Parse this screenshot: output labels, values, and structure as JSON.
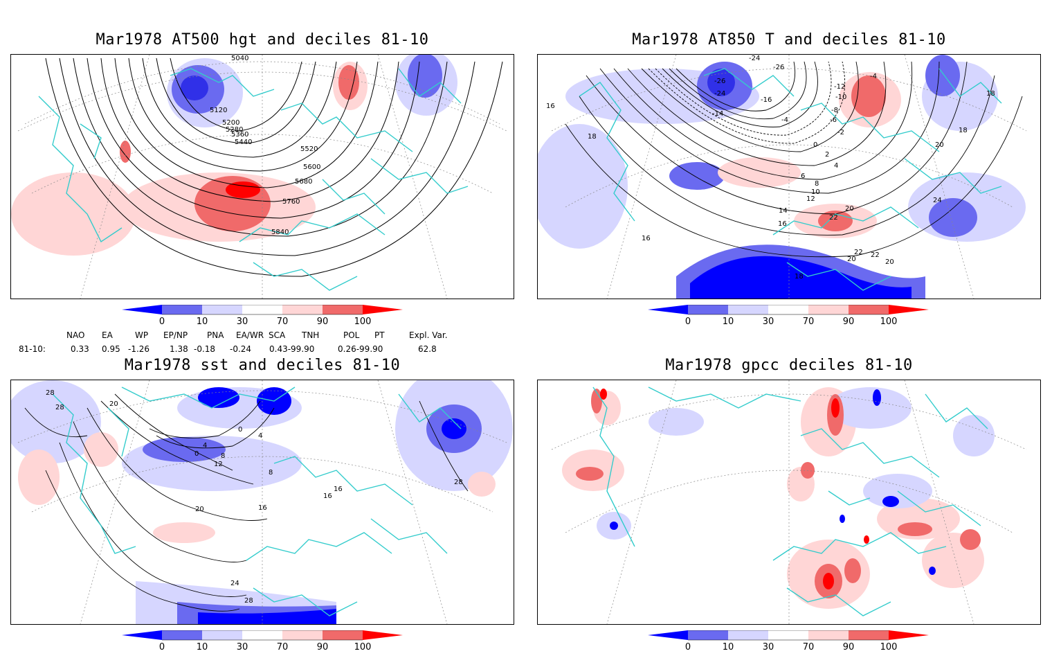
{
  "panels": [
    {
      "title": "Mar1978 AT500 hgt and deciles 81-10",
      "contour_labels": [
        "5040",
        "5120",
        "5200",
        "5280",
        "5360",
        "5440",
        "5520",
        "5600",
        "5680",
        "5760",
        "5840"
      ]
    },
    {
      "title": "Mar1978 AT850 T and deciles 81-10",
      "contour_labels": [
        "-24",
        "-26",
        "-26",
        "-24",
        "-14",
        "-16",
        "-12",
        "-10",
        "-8",
        "-6",
        "-4",
        "-4",
        "-2",
        "0",
        "2",
        "4",
        "6",
        "8",
        "10",
        "12",
        "14",
        "16",
        "18",
        "18",
        "16",
        "20",
        "22",
        "22",
        "22",
        "20",
        "24",
        "20",
        "16",
        "18",
        "20",
        "18"
      ]
    },
    {
      "title": "Mar1978 sst and deciles 81-10",
      "contour_labels": [
        "28",
        "28",
        "20",
        "0",
        "4",
        "8",
        "12",
        "4",
        "0",
        "8",
        "16",
        "16",
        "16",
        "20",
        "24",
        "28",
        "28"
      ]
    },
    {
      "title": "Mar1978 gpcc deciles 81-10",
      "contour_labels": []
    }
  ],
  "colorbar": {
    "ticks": [
      "0",
      "10",
      "30",
      "70",
      "90",
      "100"
    ],
    "colors": {
      "dark_blue": "#0000ff",
      "mid_blue": "#6a6af0",
      "light_blue": "#d6d6ff",
      "white": "#ffffff",
      "light_red": "#ffd6d6",
      "mid_red": "#f06a6a",
      "dark_red": "#ff0000"
    }
  },
  "indices": {
    "headers": [
      "NAO",
      "EA",
      "WP",
      "EP/NP",
      "PNA",
      "EA/WR",
      "SCA",
      "TNH",
      "POL",
      "PT",
      "Expl. Var."
    ],
    "row_label": "81-10:",
    "values": [
      "0.33",
      "0.95",
      "-1.26",
      "1.38",
      "-0.18",
      "-0.24",
      "0.43-99.90",
      "",
      "0.26-99.90",
      "",
      "62.8"
    ]
  },
  "map_colors": {
    "coast": "#33cccc",
    "contour": "#000000",
    "grid": "#888888"
  }
}
